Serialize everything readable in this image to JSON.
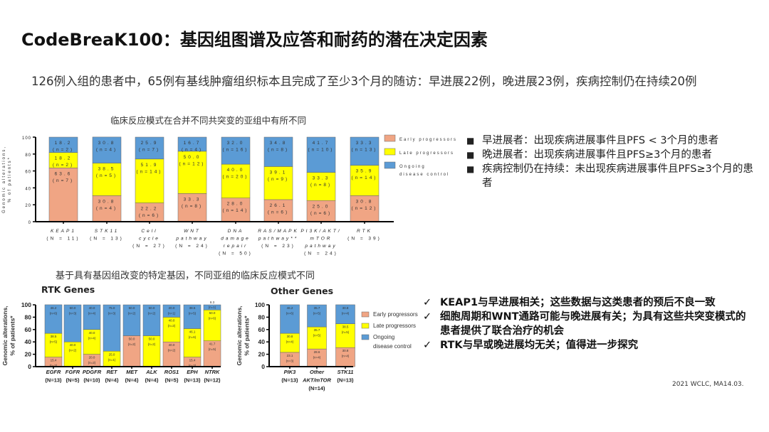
{
  "title": "CodeBreaK100：基因组图谱及应答和耐药的潜在决定因素",
  "subtitle": "126例入组的患者中，65例有基线肿瘤组织标本且完成了至少3个月的随访：早进展22例，晚进展23例，疾病控制仍在持续20例",
  "definitions": [
    "早进展者：出现疾病进展事件且PFS < 3个月的患者",
    "晚进展者：出现疾病进展事件且PFS≥3个月的患者",
    "疾病控制仍在持续：未出现疾病进展事件且PFS≥3个月的患者"
  ],
  "conclusions": [
    "KEAP1与早进展相关；这些数据与这类患者的预后不良一致",
    "细胞周期和WNT通路可能与晚进展有关；为具有这些共突变模式的患者提供了联合治疗的机会",
    "RTK与早或晚进展均无关；值得进一步探究"
  ],
  "footer": "2021 WCLC, MA14.03.",
  "colors": {
    "early": "#f0a584",
    "late": "#ffff00",
    "ongoing": "#5b9bd5"
  },
  "chart_data": [
    {
      "type": "bar",
      "stacked": true,
      "title": "临床反应模式在合并不同共突变的亚组中有所不同",
      "ylabel": "Genomic alterations, % of patients*",
      "ylim": [
        0,
        100
      ],
      "yticks": [
        0,
        20,
        40,
        60,
        80,
        100
      ],
      "legend": "right",
      "categories": [
        [
          "KEAP1",
          "(N = 11)"
        ],
        [
          "STK11",
          "(N = 13)"
        ],
        [
          "Cell",
          "cycle",
          "(N = 27)"
        ],
        [
          "WNT",
          "pathway",
          "(N = 24)"
        ],
        [
          "DNA",
          "damage",
          "repair",
          "(N = 50)"
        ],
        [
          "RAS/MAPK",
          "pathway**",
          "(N = 23)"
        ],
        [
          "PI3K/AKT/",
          "mTOR",
          "pathway",
          "(N = 24)"
        ],
        [
          "RTK",
          "(N = 39)"
        ]
      ],
      "series": [
        {
          "name": "Early progressors",
          "values": [
            63.6,
            30.8,
            22.2,
            33.3,
            28.0,
            26.1,
            25.0,
            30.8
          ],
          "n": [
            7,
            4,
            6,
            8,
            14,
            6,
            6,
            12
          ]
        },
        {
          "name": "Late progressors",
          "values": [
            18.2,
            38.5,
            51.9,
            50.0,
            40.0,
            39.1,
            33.3,
            35.9
          ],
          "n": [
            2,
            5,
            14,
            12,
            20,
            9,
            8,
            14
          ]
        },
        {
          "name": "Ongoing disease control",
          "values": [
            18.2,
            30.8,
            25.9,
            16.7,
            32.0,
            34.8,
            41.7,
            33.3
          ],
          "n": [
            2,
            4,
            7,
            4,
            16,
            8,
            10,
            13
          ]
        }
      ]
    },
    {
      "type": "bar",
      "stacked": true,
      "title": "RTK Genes",
      "ylabel": "Genomic alterations, % of patients*",
      "ylim": [
        0,
        100
      ],
      "yticks": [
        0,
        20,
        40,
        60,
        80,
        100
      ],
      "categories": [
        [
          "EGFR",
          "(N=13)"
        ],
        [
          "FGFR",
          "(N=5)"
        ],
        [
          "PDGFR",
          "(N=10)"
        ],
        [
          "RET",
          "(N=4)"
        ],
        [
          "MET",
          "(N=4)"
        ],
        [
          "ALK",
          "(N=4)"
        ],
        [
          "ROS1",
          "(N=5)"
        ],
        [
          "EPH",
          "(N=13)"
        ],
        [
          "NTRK",
          "(N=12)"
        ]
      ],
      "series": [
        {
          "name": "Early progressors",
          "values": [
            15.4,
            0,
            20.0,
            0,
            50.0,
            0,
            40.0,
            15.4,
            41.7
          ],
          "n": [
            2,
            0,
            2,
            0,
            2,
            0,
            2,
            2,
            5
          ]
        },
        {
          "name": "Late progressors",
          "values": [
            38.5,
            40.0,
            40.0,
            25.0,
            0,
            50.0,
            40.0,
            46.1,
            50.0
          ],
          "n": [
            5,
            2,
            4,
            1,
            0,
            2,
            2,
            6,
            6
          ]
        },
        {
          "name": "Ongoing disease control",
          "values": [
            46.2,
            60.0,
            40.0,
            75.0,
            50.0,
            50.0,
            20.0,
            38.5,
            8.3
          ],
          "n": [
            6,
            3,
            4,
            3,
            2,
            2,
            1,
            5,
            1
          ]
        }
      ]
    },
    {
      "type": "bar",
      "stacked": true,
      "title": "Other Genes",
      "ylabel": "Genomic alterations, % of patients*",
      "ylim": [
        0,
        100
      ],
      "yticks": [
        0,
        20,
        40,
        60,
        80,
        100
      ],
      "legend": "right",
      "categories": [
        [
          "PIK3",
          "(N=13)"
        ],
        [
          "Other",
          "AKT/mTOR",
          "(N=14)"
        ],
        [
          "STK11",
          "(N=13)"
        ]
      ],
      "series": [
        {
          "name": "Early progressors",
          "values": [
            23.1,
            28.6,
            30.8
          ],
          "n": [
            3,
            4,
            4
          ]
        },
        {
          "name": "Late progressors",
          "values": [
            30.8,
            35.7,
            38.5
          ],
          "n": [
            4,
            5,
            5
          ]
        },
        {
          "name": "Ongoing disease control",
          "values": [
            46.2,
            35.7,
            30.8
          ],
          "n": [
            6,
            5,
            4
          ]
        }
      ]
    }
  ],
  "section2_title": "基于具有基因组改变的特定基因，不同亚组的临床反应模式不同"
}
